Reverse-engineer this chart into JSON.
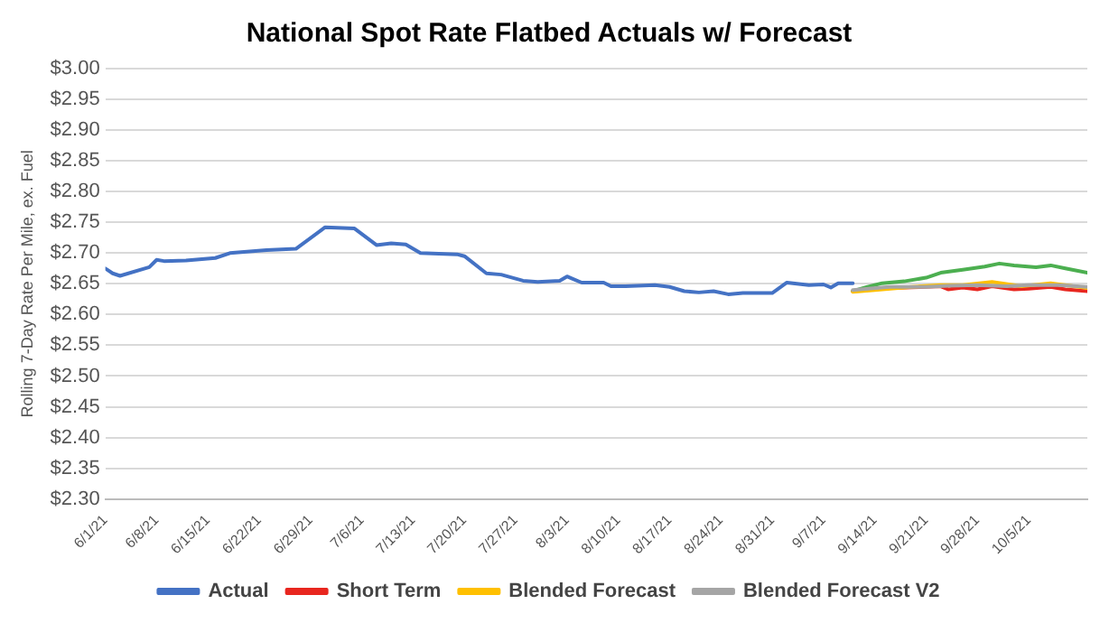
{
  "chart_data": {
    "type": "line",
    "title": "National Spot Rate Flatbed Actuals w/ Forecast",
    "ylabel": "Rolling 7-Day Rate Per Mile, ex. Fuel",
    "xlim": [
      "--06-01",
      "--10-13"
    ],
    "xticks": [
      {
        "value": "--06-01",
        "label": "6/1/21"
      },
      {
        "value": "--06-08",
        "label": "6/8/21"
      },
      {
        "value": "--06-15",
        "label": "6/15/21"
      },
      {
        "value": "--06-22",
        "label": "6/22/21"
      },
      {
        "value": "--06-29",
        "label": "6/29/21"
      },
      {
        "value": "--07-06",
        "label": "7/6/21"
      },
      {
        "value": "--07-13",
        "label": "7/13/21"
      },
      {
        "value": "--07-20",
        "label": "7/20/21"
      },
      {
        "value": "--07-27",
        "label": "7/27/21"
      },
      {
        "value": "--08-03",
        "label": "8/3/21"
      },
      {
        "value": "--08-10",
        "label": "8/10/21"
      },
      {
        "value": "--08-17",
        "label": "8/17/21"
      },
      {
        "value": "--08-24",
        "label": "8/24/21"
      },
      {
        "value": "--08-31",
        "label": "8/31/21"
      },
      {
        "value": "--09-07",
        "label": "9/7/21"
      },
      {
        "value": "--09-14",
        "label": "9/14/21"
      },
      {
        "value": "--09-21",
        "label": "9/21/21"
      },
      {
        "value": "--09-28",
        "label": "9/28/21"
      },
      {
        "value": "--10-05",
        "label": "10/5/21"
      }
    ],
    "ylim": [
      2.3,
      3.0
    ],
    "yticks": [
      {
        "value": 2.3,
        "label": "$2.30"
      },
      {
        "value": 2.35,
        "label": "$2.35"
      },
      {
        "value": 2.4,
        "label": "$2.40"
      },
      {
        "value": 2.45,
        "label": "$2.45"
      },
      {
        "value": 2.5,
        "label": "$2.50"
      },
      {
        "value": 2.55,
        "label": "$2.55"
      },
      {
        "value": 2.6,
        "label": "$2.60"
      },
      {
        "value": 2.65,
        "label": "$2.65"
      },
      {
        "value": 2.7,
        "label": "$2.70"
      },
      {
        "value": 2.75,
        "label": "$2.75"
      },
      {
        "value": 2.8,
        "label": "$2.80"
      },
      {
        "value": 2.85,
        "label": "$2.85"
      },
      {
        "value": 2.9,
        "label": "$2.90"
      },
      {
        "value": 2.95,
        "label": "$2.95"
      },
      {
        "value": 3.0,
        "label": "$3.00"
      }
    ],
    "grid": "y",
    "legend": "bottom",
    "marker": "none",
    "line_style": "solid",
    "series": [
      {
        "name": "Actual",
        "color": "#4472c4",
        "x": [
          "--06-01",
          "--06-02",
          "--06-03",
          "--06-07",
          "--06-08",
          "--06-09",
          "--06-12",
          "--06-16",
          "--06-18",
          "--06-23",
          "--06-27",
          "--07-01",
          "--07-05",
          "--07-08",
          "--07-10",
          "--07-12",
          "--07-14",
          "--07-19",
          "--07-20",
          "--07-23",
          "--07-25",
          "--07-28",
          "--07-30",
          "--08-02",
          "--08-03",
          "--08-04",
          "--08-05",
          "--08-08",
          "--08-09",
          "--08-11",
          "--08-15",
          "--08-17",
          "--08-19",
          "--08-21",
          "--08-23",
          "--08-25",
          "--08-27",
          "--08-31",
          "--09-02",
          "--09-05",
          "--09-07",
          "--09-08",
          "--09-09",
          "--09-11"
        ],
        "values": [
          2.675,
          2.667,
          2.663,
          2.677,
          2.689,
          2.687,
          2.688,
          2.692,
          2.7,
          2.705,
          2.707,
          2.742,
          2.74,
          2.713,
          2.716,
          2.714,
          2.7,
          2.698,
          2.695,
          2.667,
          2.665,
          2.655,
          2.653,
          2.655,
          2.662,
          2.657,
          2.652,
          2.652,
          2.646,
          2.646,
          2.648,
          2.645,
          2.638,
          2.636,
          2.638,
          2.633,
          2.635,
          2.635,
          2.652,
          2.648,
          2.649,
          2.644,
          2.651,
          2.651
        ]
      },
      {
        "name": "Short Term",
        "color": "#e8261f",
        "x": [
          "--09-11",
          "--09-16",
          "--09-23",
          "--09-24",
          "--09-26",
          "--09-28",
          "--09-30",
          "--10-03",
          "--10-05",
          "--10-08",
          "--10-10",
          "--10-13"
        ],
        "values": [
          2.638,
          2.643,
          2.646,
          2.641,
          2.644,
          2.641,
          2.646,
          2.641,
          2.642,
          2.645,
          2.641,
          2.638
        ]
      },
      {
        "color": "#4caf50",
        "x": [
          "--09-11",
          "--09-13",
          "--09-15",
          "--09-18",
          "--09-21",
          "--09-23",
          "--09-26",
          "--09-29",
          "--10-01",
          "--10-03",
          "--10-06",
          "--10-08",
          "--10-10",
          "--10-13"
        ],
        "values": [
          2.638,
          2.645,
          2.651,
          2.654,
          2.66,
          2.668,
          2.673,
          2.678,
          2.683,
          2.68,
          2.677,
          2.68,
          2.675,
          2.668
        ]
      },
      {
        "name": "Blended Forecast",
        "color": "#ffc000",
        "x": [
          "--09-11",
          "--09-14",
          "--09-19",
          "--09-23",
          "--09-26",
          "--09-30",
          "--10-04",
          "--10-08",
          "--10-13"
        ],
        "values": [
          2.637,
          2.64,
          2.645,
          2.648,
          2.648,
          2.653,
          2.646,
          2.651,
          2.643
        ]
      },
      {
        "name": "Blended Forecast V2",
        "color": "#a5a5a5",
        "x": [
          "--09-11",
          "--09-16",
          "--09-21",
          "--09-24",
          "--09-28",
          "--10-02",
          "--10-05",
          "--10-09",
          "--10-13"
        ],
        "values": [
          2.64,
          2.645,
          2.645,
          2.647,
          2.648,
          2.646,
          2.648,
          2.648,
          2.645
        ]
      }
    ]
  }
}
